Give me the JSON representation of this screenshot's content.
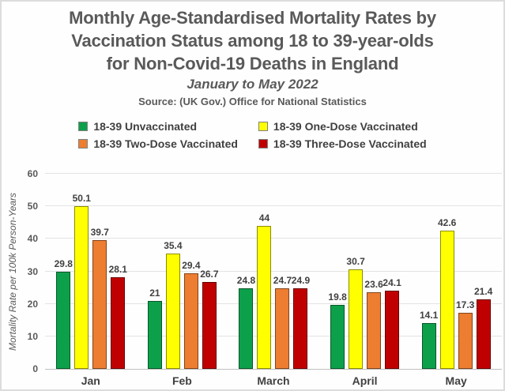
{
  "title": {
    "line1": "Monthly Age-Standardised Mortality Rates by",
    "line2": "Vaccination Status among 18 to 39-year-olds",
    "line3": "for Non-Covid-19 Deaths in England",
    "subtitle": "January to May 2022",
    "source": "Source: (UK Gov.) Office for National Statistics"
  },
  "legend": {
    "items": [
      {
        "label": "18-39 Unvaccinated",
        "color": "#0DA04B"
      },
      {
        "label": "18-39 One-Dose Vaccinated",
        "color": "#FFFF00"
      },
      {
        "label": "18-39 Two-Dose Vaccinated",
        "color": "#ED7D31"
      },
      {
        "label": "18-39 Three-Dose Vaccinated",
        "color": "#C00000"
      }
    ]
  },
  "chart_data": {
    "type": "bar",
    "title": "Monthly Age-Standardised Mortality Rates by Vaccination Status among 18 to 39-year-olds for Non-Covid-19 Deaths in England",
    "subtitle": "January to May 2022",
    "source": "Source: (UK Gov.) Office for National Statistics",
    "categories": [
      "Jan",
      "Feb",
      "March",
      "April",
      "May"
    ],
    "series": [
      {
        "name": "18-39 Unvaccinated",
        "color": "#0DA04B",
        "values": [
          29.8,
          21,
          24.8,
          19.8,
          14.1
        ]
      },
      {
        "name": "18-39 One-Dose Vaccinated",
        "color": "#FFFF00",
        "values": [
          50.1,
          35.4,
          44,
          30.7,
          42.6
        ]
      },
      {
        "name": "18-39 Two-Dose Vaccinated",
        "color": "#ED7D31",
        "values": [
          39.7,
          29.4,
          24.7,
          23.6,
          17.3
        ]
      },
      {
        "name": "18-39 Three-Dose Vaccinated",
        "color": "#C00000",
        "values": [
          28.1,
          26.7,
          24.9,
          24.1,
          21.4
        ]
      }
    ],
    "xlabel": "",
    "ylabel": "Mortality Rate per 100k Person-Years",
    "ylim": [
      0,
      60
    ],
    "yticks": [
      0,
      10,
      20,
      30,
      40,
      50,
      60
    ],
    "grid": true,
    "legend_position": "top",
    "data_labels": true
  }
}
